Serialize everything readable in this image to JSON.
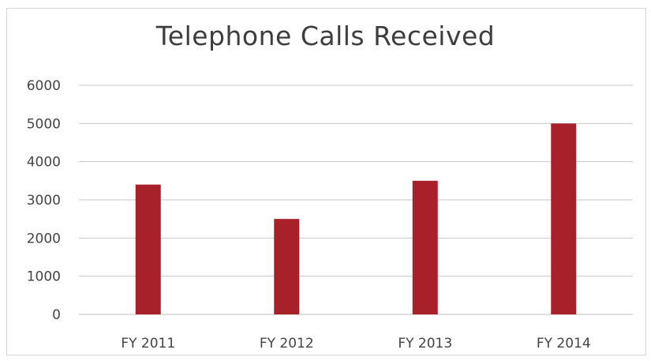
{
  "chart_data": {
    "type": "bar",
    "title": "Telephone Calls Received",
    "categories": [
      "FY 2011",
      "FY 2012",
      "FY 2013",
      "FY 2014"
    ],
    "values": [
      3400,
      2500,
      3500,
      5000
    ],
    "ylim": [
      0,
      6000
    ],
    "yticks": [
      0,
      1000,
      2000,
      3000,
      4000,
      5000,
      6000
    ],
    "grid": true,
    "legend": "none",
    "bar_color": "#a8202a",
    "grid_color": "#c8c8c8"
  }
}
